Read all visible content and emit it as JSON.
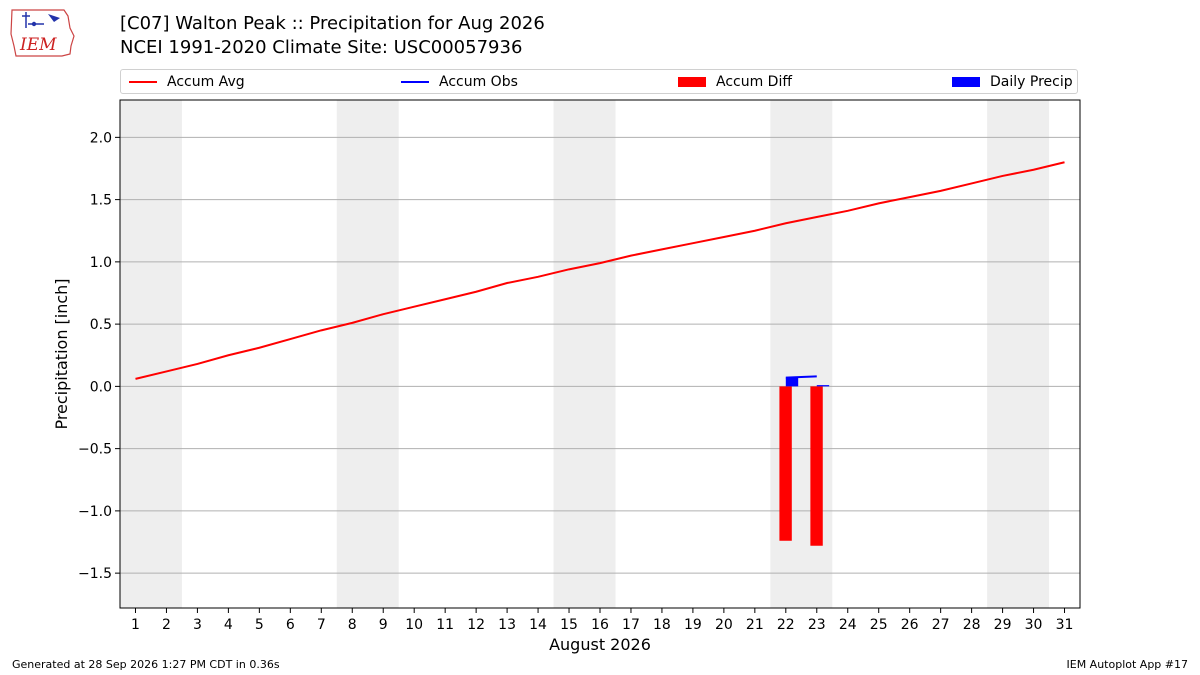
{
  "header": {
    "logo_text": "IEM",
    "title_line1": "[C07] Walton Peak :: Precipitation for Aug 2026",
    "title_line2": "NCEI 1991-2020 Climate Site: USC00057936"
  },
  "legend": {
    "items": [
      {
        "label": "Accum Avg",
        "kind": "line",
        "color": "#ff0000"
      },
      {
        "label": "Accum Obs",
        "kind": "line",
        "color": "#0000ff"
      },
      {
        "label": "Accum Diff",
        "kind": "box",
        "color": "#ff0000"
      },
      {
        "label": "Daily Precip",
        "kind": "box",
        "color": "#0000ff"
      }
    ]
  },
  "footer": {
    "left": "Generated at 28 Sep 2026 1:27 PM CDT in 0.36s",
    "right": "IEM Autoplot App #17"
  },
  "chart_data": {
    "type": "line",
    "xlabel": "August 2026",
    "ylabel": "Precipitation [inch]",
    "xlim": [
      0.5,
      31.5
    ],
    "ylim": [
      -1.78,
      2.3
    ],
    "x_ticks": [
      1,
      2,
      3,
      4,
      5,
      6,
      7,
      8,
      9,
      10,
      11,
      12,
      13,
      14,
      15,
      16,
      17,
      18,
      19,
      20,
      21,
      22,
      23,
      24,
      25,
      26,
      27,
      28,
      29,
      30,
      31
    ],
    "y_ticks": [
      -1.5,
      -1.0,
      -0.5,
      0.0,
      0.5,
      1.0,
      1.5,
      2.0
    ],
    "y_tick_labels": [
      "−1.5",
      "−1.0",
      "−0.5",
      "0.0",
      "0.5",
      "1.0",
      "1.5",
      "2.0"
    ],
    "grid": "horizontal",
    "legend_position": "top",
    "weekend_shading": [
      [
        0.5,
        2.5
      ],
      [
        7.5,
        9.5
      ],
      [
        14.5,
        16.5
      ],
      [
        21.5,
        23.5
      ],
      [
        28.5,
        30.5
      ]
    ],
    "accum_avg": {
      "x": [
        1,
        2,
        3,
        4,
        5,
        6,
        7,
        8,
        9,
        10,
        11,
        12,
        13,
        14,
        15,
        16,
        17,
        18,
        19,
        20,
        21,
        22,
        23,
        24,
        25,
        26,
        27,
        28,
        29,
        30,
        31
      ],
      "y": [
        0.06,
        0.12,
        0.18,
        0.25,
        0.31,
        0.38,
        0.45,
        0.51,
        0.58,
        0.64,
        0.7,
        0.76,
        0.83,
        0.88,
        0.94,
        0.99,
        1.05,
        1.1,
        1.15,
        1.2,
        1.25,
        1.31,
        1.36,
        1.41,
        1.47,
        1.52,
        1.57,
        1.63,
        1.69,
        1.74,
        1.8
      ],
      "color": "#ff0000"
    },
    "accum_obs": {
      "x": [
        22,
        23
      ],
      "y": [
        0.07,
        0.08
      ],
      "color": "#0000ff"
    },
    "accum_diff": {
      "x": [
        22,
        23
      ],
      "values": [
        -1.24,
        -1.28
      ],
      "color": "#ff0000"
    },
    "daily_precip": {
      "x": [
        22,
        23
      ],
      "values": [
        0.07,
        0.01
      ],
      "color": "#0000ff"
    }
  }
}
